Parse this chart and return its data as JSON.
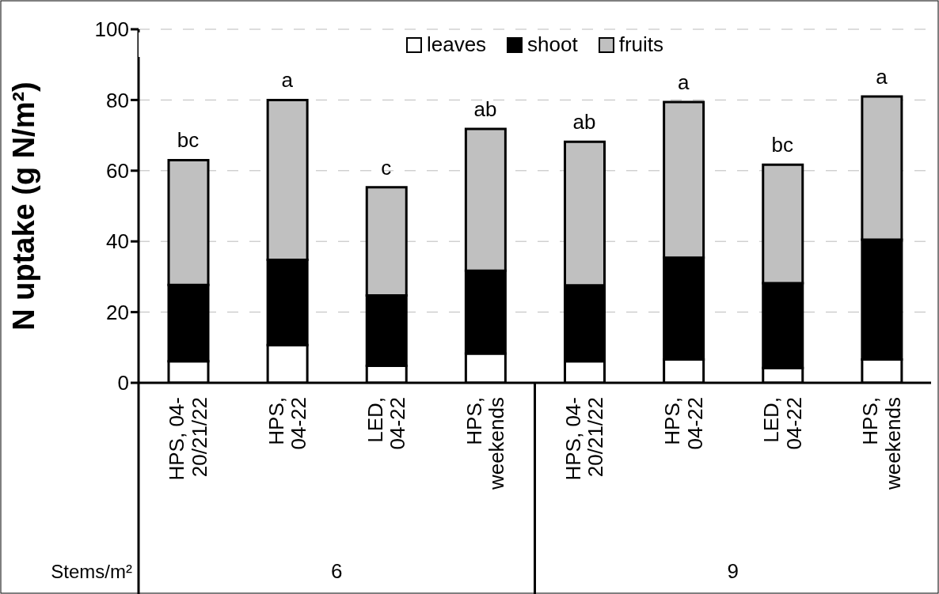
{
  "chart_data": {
    "type": "bar",
    "stacked": true,
    "ylabel": "N uptake (g N/m²)",
    "categories": [
      "HPS, 04-20/21/22",
      "HPS, 04-22",
      "LED, 04-22",
      "HPS, weekends",
      "HPS, 04-20/21/22",
      "HPS, 04-22",
      "LED, 04-22",
      "HPS, weekends"
    ],
    "series": [
      {
        "name": "leaves",
        "color": "#ffffff",
        "values": [
          6.1,
          10.7,
          4.8,
          8.3,
          6.1,
          6.6,
          4.2,
          6.6
        ]
      },
      {
        "name": "shoot",
        "color": "#000000",
        "values": [
          21.6,
          24.1,
          19.9,
          23.4,
          21.5,
          28.8,
          24.0,
          33.9
        ]
      },
      {
        "name": "fruits",
        "color": "#c0c0c0",
        "values": [
          35.3,
          45.2,
          30.6,
          40.1,
          40.6,
          44.0,
          33.5,
          40.5
        ]
      }
    ],
    "ylim": [
      0,
      100
    ],
    "yticks": [
      0,
      20,
      40,
      60,
      80,
      100
    ],
    "grid": "y",
    "legend": "top",
    "annotations": [
      "bc",
      "a",
      "c",
      "ab",
      "ab",
      "a",
      "bc",
      "a",
      "Stems/m²",
      "6",
      "9"
    ]
  }
}
